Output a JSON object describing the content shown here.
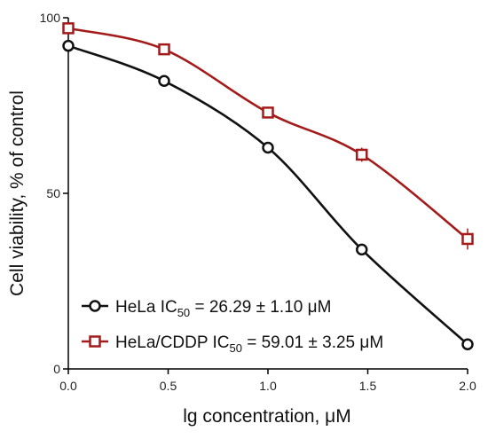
{
  "chart_data": {
    "type": "line",
    "xlabel": "lg concentration, μM",
    "ylabel": "Cell viability, % of control",
    "xlim": [
      0,
      2.0
    ],
    "ylim": [
      0,
      100
    ],
    "x_ticks": [
      "0.0",
      "0.5",
      "1.0",
      "1.5",
      "2.0"
    ],
    "y_ticks": [
      "0",
      "50",
      "100"
    ],
    "legend_position": "bottom-left",
    "series": [
      {
        "name": "HeLa IC50 = 26.29 ± 1.10 μM",
        "legend_main": "HeLa IC",
        "legend_sub": "50",
        "legend_rest": " = 26.29 ± 1.10 μM",
        "color": "#111111",
        "marker": "circle",
        "x": [
          0.0,
          0.48,
          1.0,
          1.47,
          2.0
        ],
        "y": [
          92,
          82,
          63,
          34,
          7
        ],
        "error": [
          0,
          0,
          0,
          0,
          0
        ]
      },
      {
        "name": "HeLa/CDDP IC50 = 59.01 ± 3.25 μM",
        "legend_main": "HeLa/CDDP IC",
        "legend_sub": "50",
        "legend_rest": " = 59.01 ± 3.25 μM",
        "color": "#a31b1b",
        "marker": "square",
        "x": [
          0.0,
          0.48,
          1.0,
          1.47,
          2.0
        ],
        "y": [
          97,
          91,
          73,
          61,
          37
        ],
        "error": [
          0,
          0,
          0,
          2,
          3
        ]
      }
    ]
  }
}
